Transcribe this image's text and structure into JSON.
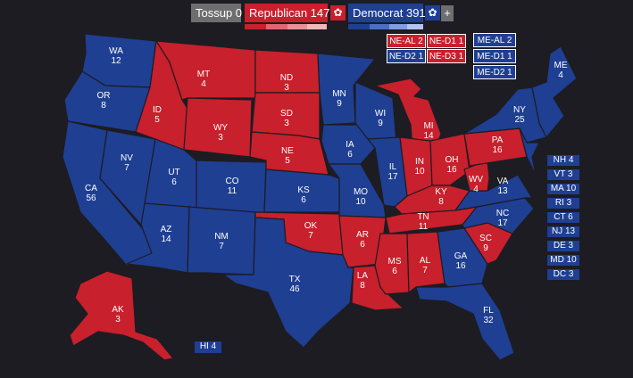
{
  "header": {
    "tossup_label": "Tossup 0",
    "republican_label": "Republican 147",
    "democrat_label": "Democrat 391",
    "add_symbol": "+",
    "gear_symbol": "✿"
  },
  "colors": {
    "republican": "#c8202c",
    "democrat": "#1f3f93",
    "tossup": "#6e6e6e",
    "background": "#1c1c22"
  },
  "totals": {
    "tossup": 0,
    "republican": 147,
    "democrat": 391
  },
  "states": {
    "WA": {
      "label": "WA\n12",
      "party": "D"
    },
    "OR": {
      "label": "OR\n8",
      "party": "D"
    },
    "CA": {
      "label": "CA\n56",
      "party": "D"
    },
    "NV": {
      "label": "NV\n7",
      "party": "D"
    },
    "ID": {
      "label": "ID\n5",
      "party": "R"
    },
    "MT": {
      "label": "MT\n4",
      "party": "R"
    },
    "WY": {
      "label": "WY\n3",
      "party": "R"
    },
    "UT": {
      "label": "UT\n6",
      "party": "D"
    },
    "CO": {
      "label": "CO\n11",
      "party": "D"
    },
    "AZ": {
      "label": "AZ\n14",
      "party": "D"
    },
    "NM": {
      "label": "NM\n7",
      "party": "D"
    },
    "ND": {
      "label": "ND\n3",
      "party": "R"
    },
    "SD": {
      "label": "SD\n3",
      "party": "R"
    },
    "NE": {
      "label": "NE\n5",
      "party": "R"
    },
    "KS": {
      "label": "KS\n6",
      "party": "D"
    },
    "OK": {
      "label": "OK\n7",
      "party": "R"
    },
    "TX": {
      "label": "TX\n46",
      "party": "D"
    },
    "MN": {
      "label": "MN\n9",
      "party": "D"
    },
    "IA": {
      "label": "IA\n6",
      "party": "D"
    },
    "MO": {
      "label": "MO\n10",
      "party": "D"
    },
    "AR": {
      "label": "AR\n6",
      "party": "R"
    },
    "LA": {
      "label": "LA\n8",
      "party": "R"
    },
    "WI": {
      "label": "WI\n9",
      "party": "D"
    },
    "IL": {
      "label": "IL\n17",
      "party": "D"
    },
    "MI": {
      "label": "MI\n14",
      "party": "R"
    },
    "IN": {
      "label": "IN\n10",
      "party": "R"
    },
    "OH": {
      "label": "OH\n16",
      "party": "R"
    },
    "KY": {
      "label": "KY\n8",
      "party": "R"
    },
    "TN": {
      "label": "TN\n11",
      "party": "R"
    },
    "MS": {
      "label": "MS\n6",
      "party": "R"
    },
    "AL": {
      "label": "AL\n7",
      "party": "R"
    },
    "GA": {
      "label": "GA\n16",
      "party": "D"
    },
    "FL": {
      "label": "FL\n32",
      "party": "D"
    },
    "SC": {
      "label": "SC\n9",
      "party": "R"
    },
    "NC": {
      "label": "NC\n17",
      "party": "D"
    },
    "VA": {
      "label": "VA\n13",
      "party": "D"
    },
    "WV": {
      "label": "WV\n4",
      "party": "R"
    },
    "PA": {
      "label": "PA\n16",
      "party": "R"
    },
    "NY": {
      "label": "NY\n25",
      "party": "D"
    },
    "ME": {
      "label": "ME\n4",
      "party": "D"
    },
    "AK": {
      "label": "AK\n3",
      "party": "R"
    },
    "HI": {
      "label": "HI 4",
      "party": "D"
    }
  },
  "districts": {
    "ne_al": "NE-AL 2",
    "ne_d1": "NE-D1 1",
    "ne_d2": "NE-D2 1",
    "ne_d3": "NE-D3 1",
    "me_al": "ME-AL 2",
    "me_d1": "ME-D1 1",
    "me_d2": "ME-D2 1"
  },
  "small_states": {
    "nh": "NH 4",
    "vt": "VT 3",
    "ma": "MA 10",
    "ri": "RI 3",
    "ct": "CT 6",
    "nj": "NJ 13",
    "de": "DE 3",
    "md": "MD 10",
    "dc": "DC 3"
  }
}
